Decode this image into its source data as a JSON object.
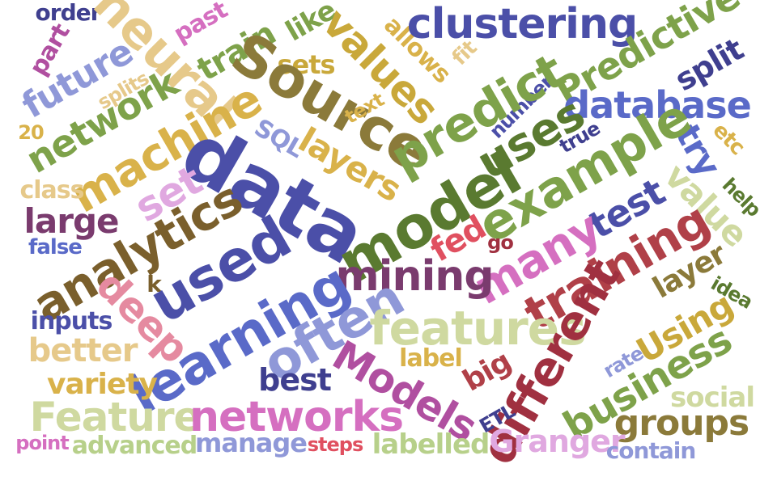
{
  "words": [
    "order",
    "past",
    "train",
    "like",
    "values",
    "allows",
    "clustering",
    "Predictive",
    "neural",
    "part",
    "future",
    "sets",
    "fit",
    "split",
    "splits",
    "Source",
    "text",
    "20",
    "network",
    "machine",
    "number",
    "predict",
    "database",
    "true",
    "SQL",
    "uses",
    "etc",
    "data",
    "try",
    "layers",
    "example",
    "class",
    "set",
    "value",
    "help",
    "large",
    "analytics",
    "model",
    "test",
    "false",
    "fed",
    "many",
    "go",
    "layer",
    "k",
    "mining",
    "used",
    "idea",
    "deep",
    "training",
    "inputs",
    "learning",
    "often",
    "features",
    "Using",
    "better",
    "label",
    "rate",
    "variety",
    "best",
    "Models",
    "big",
    "different",
    "business",
    "social",
    "Feature",
    "networks",
    "groups",
    "ETL",
    "point",
    "advanced",
    "manage",
    "steps",
    "labelled",
    "Granger",
    "contain"
  ],
  "colors": {
    "navy": "#3f3f8f",
    "indigo": "#4b4fa8",
    "periwinkle": "#8f98d8",
    "olive": "#8b7a3a",
    "brown": "#7a5f2c",
    "gold": "#c9a83a",
    "mustard": "#d9b24a",
    "sand": "#e6c98a",
    "green": "#7ea24a",
    "darkgreen": "#5a7a30",
    "lightgreen": "#b7d08a",
    "pale": "#cfd9a0",
    "pink": "#d56fc0",
    "magenta": "#b04fa0",
    "rose": "#e58aa0",
    "red": "#b04048",
    "crimson": "#a03040",
    "plum": "#7a3b6e",
    "purple": "#6a3f7a",
    "lavender": "#e0a8e0"
  }
}
